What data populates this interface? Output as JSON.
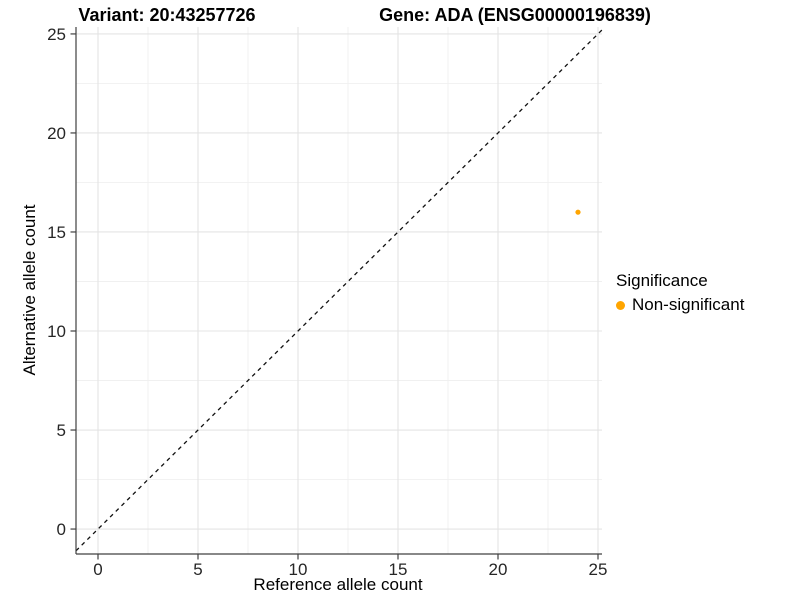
{
  "chart_data": {
    "type": "scatter",
    "title_left": "Variant: 20:43257726",
    "title_right": "Gene: ADA (ENSG00000196839)",
    "xlabel": "Reference allele count",
    "ylabel": "Alternative allele count",
    "legend_title": "Significance",
    "legend_position": "right",
    "xlim": [
      -1.1,
      25.2
    ],
    "ylim": [
      -1.26,
      25.35
    ],
    "x_ticks": [
      0,
      5,
      10,
      15,
      20,
      25
    ],
    "y_ticks": [
      0,
      5,
      10,
      15,
      20,
      25
    ],
    "x_minor_ticks": [
      2.5,
      7.5,
      12.5,
      17.5,
      22.5
    ],
    "y_minor_ticks": [
      2.5,
      7.5,
      12.5,
      17.5,
      22.5
    ],
    "grid": "major+minor",
    "series": [
      {
        "name": "Non-significant",
        "color": "#FFA500",
        "point_size": 2.6,
        "points": [
          {
            "x": 24,
            "y": 16
          }
        ]
      }
    ],
    "reference_line": {
      "slope": 1,
      "intercept": 0,
      "linetype": "dashed",
      "color": "#111111"
    }
  },
  "style_colors": {
    "grid_major": "#E4E4E4",
    "grid_minor": "#F0F0F0",
    "axis_line": "#404040",
    "tick_text": "#262626"
  }
}
